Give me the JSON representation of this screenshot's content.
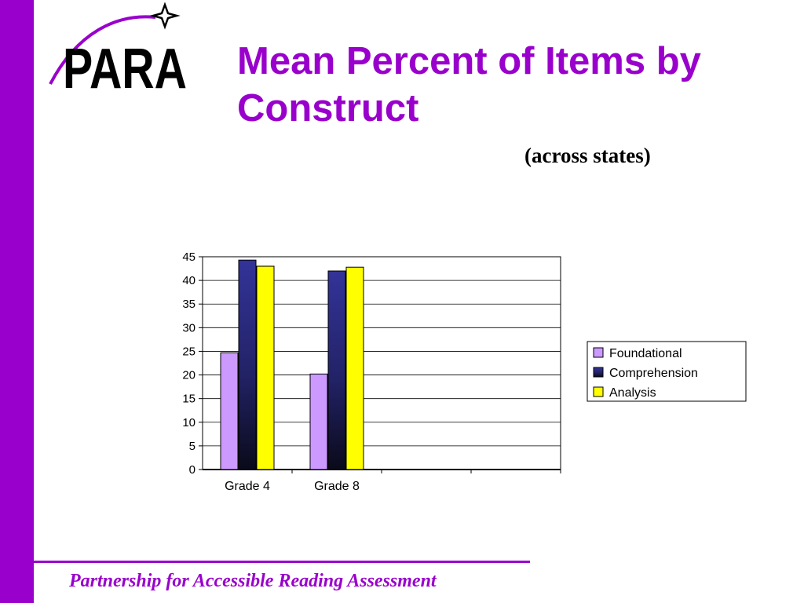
{
  "slide": {
    "title": "Mean Percent of Items by Construct",
    "subtitle": "(across states)",
    "footer": "Partnership for Accessible Reading Assessment",
    "logo_text": "PARA",
    "colors": {
      "accent": "#9900cc",
      "foundational": "#cc99ff",
      "comprehension": "#333399",
      "analysis": "#ffff00"
    }
  },
  "chart_data": {
    "type": "bar",
    "categories": [
      "Grade 4",
      "Grade 8"
    ],
    "series": [
      {
        "name": "Foundational",
        "values": [
          24.7,
          20.2
        ]
      },
      {
        "name": "Comprehension",
        "values": [
          44.3,
          42.0
        ]
      },
      {
        "name": "Analysis",
        "values": [
          43.0,
          42.8
        ]
      }
    ],
    "ylim": [
      0,
      45
    ],
    "yticks": [
      0,
      5,
      10,
      15,
      20,
      25,
      30,
      35,
      40,
      45
    ],
    "grid": true,
    "legend_position": "right"
  }
}
